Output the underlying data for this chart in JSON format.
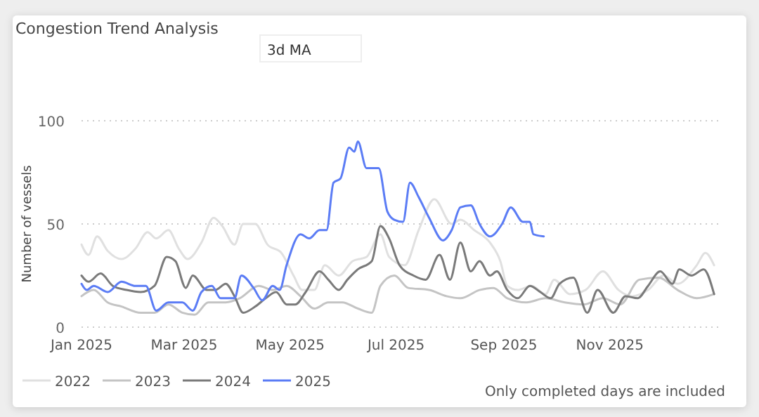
{
  "chart_data": {
    "type": "line",
    "title": "Congestion Trend Analysis",
    "ylabel": "Number of vessels",
    "annotations": [
      "3d MA",
      "Only completed days are included"
    ],
    "xlim": [
      "2025-01-01",
      "2026-01-04"
    ],
    "xticks": [
      {
        "value": "2025-01-01",
        "label": "Jan 2025"
      },
      {
        "value": "2025-03-01",
        "label": "Mar 2025"
      },
      {
        "value": "2025-05-01",
        "label": "May 2025"
      },
      {
        "value": "2025-07-01",
        "label": "Jul 2025"
      },
      {
        "value": "2025-09-01",
        "label": "Sep 2025"
      },
      {
        "value": "2025-11-01",
        "label": "Nov 2025"
      }
    ],
    "ylim": [
      0,
      100
    ],
    "yticks": [
      0,
      50,
      100
    ],
    "grid": "y",
    "legend": "bottom left",
    "line_style": "solid",
    "marker": "none",
    "series": [
      {
        "name": "2022",
        "color": "#e0e0e0",
        "x": [
          "2025-01-01",
          "2025-01-05",
          "2025-01-10",
          "2025-01-16",
          "2025-01-24",
          "2025-02-01",
          "2025-02-08",
          "2025-02-13",
          "2025-02-20",
          "2025-02-26",
          "2025-03-03",
          "2025-03-11",
          "2025-03-18",
          "2025-03-23",
          "2025-03-30",
          "2025-04-04",
          "2025-04-11",
          "2025-04-18",
          "2025-04-26",
          "2025-05-03",
          "2025-05-08",
          "2025-05-15",
          "2025-05-21",
          "2025-05-29",
          "2025-06-06",
          "2025-06-14",
          "2025-06-22",
          "2025-06-27",
          "2025-07-06",
          "2025-07-14",
          "2025-07-23",
          "2025-08-02",
          "2025-08-07",
          "2025-08-15",
          "2025-08-24",
          "2025-08-30",
          "2025-09-03",
          "2025-09-09",
          "2025-09-17",
          "2025-09-25",
          "2025-09-30",
          "2025-10-09",
          "2025-10-18",
          "2025-10-28",
          "2025-11-06",
          "2025-11-14",
          "2025-11-23",
          "2025-12-02",
          "2025-12-10",
          "2025-12-21",
          "2025-12-26",
          "2025-12-31"
        ],
        "values": [
          40,
          35,
          44,
          37,
          33,
          38,
          46,
          43,
          47,
          38,
          33,
          41,
          53,
          49,
          40,
          50,
          50,
          40,
          36,
          25,
          18,
          18,
          30,
          25,
          32,
          34,
          45,
          34,
          30,
          47,
          62,
          50,
          52,
          47,
          41,
          32,
          20,
          18,
          20,
          16,
          23,
          16,
          18,
          27,
          18,
          15,
          18,
          25,
          21,
          30,
          36,
          30
        ]
      },
      {
        "name": "2023",
        "color": "#c4c4c4",
        "x": [
          "2025-01-01",
          "2025-01-08",
          "2025-01-16",
          "2025-01-24",
          "2025-02-04",
          "2025-02-12",
          "2025-02-20",
          "2025-02-28",
          "2025-03-07",
          "2025-03-15",
          "2025-03-25",
          "2025-04-02",
          "2025-04-13",
          "2025-04-21",
          "2025-04-29",
          "2025-05-07",
          "2025-05-15",
          "2025-05-23",
          "2025-05-31",
          "2025-06-09",
          "2025-06-17",
          "2025-06-22",
          "2025-06-30",
          "2025-07-08",
          "2025-07-20",
          "2025-07-30",
          "2025-08-07",
          "2025-08-18",
          "2025-08-26",
          "2025-09-03",
          "2025-09-14",
          "2025-09-25",
          "2025-10-06",
          "2025-10-17",
          "2025-10-28",
          "2025-11-07",
          "2025-11-18",
          "2025-11-29",
          "2025-12-10",
          "2025-12-21",
          "2025-12-31"
        ],
        "values": [
          15,
          18,
          12,
          10,
          7,
          7,
          11,
          7,
          6,
          12,
          12,
          14,
          20,
          18,
          20,
          15,
          9,
          12,
          12,
          9,
          7,
          20,
          25,
          19,
          18,
          15,
          14,
          18,
          19,
          14,
          12,
          14,
          12,
          11,
          14,
          11,
          23,
          24,
          18,
          14,
          16
        ]
      },
      {
        "name": "2024",
        "color": "#7a7a7a",
        "x": [
          "2025-01-01",
          "2025-01-05",
          "2025-01-12",
          "2025-01-19",
          "2025-01-27",
          "2025-02-04",
          "2025-02-12",
          "2025-02-19",
          "2025-02-24",
          "2025-03-02",
          "2025-03-06",
          "2025-03-14",
          "2025-03-19",
          "2025-03-25",
          "2025-03-30",
          "2025-04-04",
          "2025-04-11",
          "2025-04-17",
          "2025-04-23",
          "2025-04-29",
          "2025-05-04",
          "2025-05-10",
          "2025-05-18",
          "2025-05-23",
          "2025-05-29",
          "2025-06-03",
          "2025-06-09",
          "2025-06-17",
          "2025-06-22",
          "2025-06-27",
          "2025-07-03",
          "2025-07-11",
          "2025-07-18",
          "2025-07-26",
          "2025-08-01",
          "2025-08-07",
          "2025-08-13",
          "2025-08-18",
          "2025-08-24",
          "2025-08-28",
          "2025-09-03",
          "2025-09-09",
          "2025-09-16",
          "2025-09-22",
          "2025-09-28",
          "2025-10-03",
          "2025-10-11",
          "2025-10-19",
          "2025-10-25",
          "2025-11-03",
          "2025-11-10",
          "2025-11-17",
          "2025-11-23",
          "2025-11-30",
          "2025-12-07",
          "2025-12-11",
          "2025-12-18",
          "2025-12-25",
          "2025-12-31"
        ],
        "values": [
          25,
          22,
          26,
          20,
          18,
          17,
          20,
          34,
          32,
          19,
          25,
          18,
          18,
          21,
          15,
          7,
          10,
          14,
          17,
          11,
          11,
          17,
          27,
          23,
          18,
          23,
          28,
          32,
          49,
          43,
          30,
          25,
          23,
          35,
          23,
          41,
          27,
          32,
          25,
          27,
          18,
          14,
          20,
          17,
          14,
          21,
          24,
          7,
          18,
          7,
          15,
          14,
          20,
          27,
          21,
          28,
          25,
          28,
          16
        ]
      },
      {
        "name": "2025",
        "color": "#5b7cf5",
        "x": [
          "2025-01-01",
          "2025-01-04",
          "2025-01-08",
          "2025-01-16",
          "2025-01-24",
          "2025-02-01",
          "2025-02-07",
          "2025-02-13",
          "2025-02-20",
          "2025-02-28",
          "2025-03-06",
          "2025-03-11",
          "2025-03-17",
          "2025-03-22",
          "2025-03-30",
          "2025-04-03",
          "2025-04-10",
          "2025-04-15",
          "2025-04-21",
          "2025-04-25",
          "2025-04-29",
          "2025-05-07",
          "2025-05-12",
          "2025-05-18",
          "2025-05-22",
          "2025-05-26",
          "2025-05-30",
          "2025-06-04",
          "2025-06-07",
          "2025-06-09",
          "2025-06-14",
          "2025-06-21",
          "2025-06-26",
          "2025-06-30",
          "2025-07-05",
          "2025-07-09",
          "2025-07-14",
          "2025-07-20",
          "2025-07-28",
          "2025-08-02",
          "2025-08-07",
          "2025-08-13",
          "2025-08-18",
          "2025-08-24",
          "2025-08-31",
          "2025-09-05",
          "2025-09-12",
          "2025-09-16",
          "2025-09-18",
          "2025-09-24"
        ],
        "values": [
          21,
          18,
          20,
          17,
          22,
          20,
          20,
          8,
          12,
          12,
          8,
          17,
          20,
          14,
          14,
          25,
          19,
          13,
          20,
          18,
          30,
          45,
          43,
          47,
          47,
          70,
          72,
          87,
          85,
          90,
          77,
          77,
          56,
          52,
          51,
          70,
          63,
          53,
          42,
          47,
          58,
          59,
          50,
          44,
          50,
          58,
          51,
          51,
          45,
          44
        ]
      }
    ]
  }
}
